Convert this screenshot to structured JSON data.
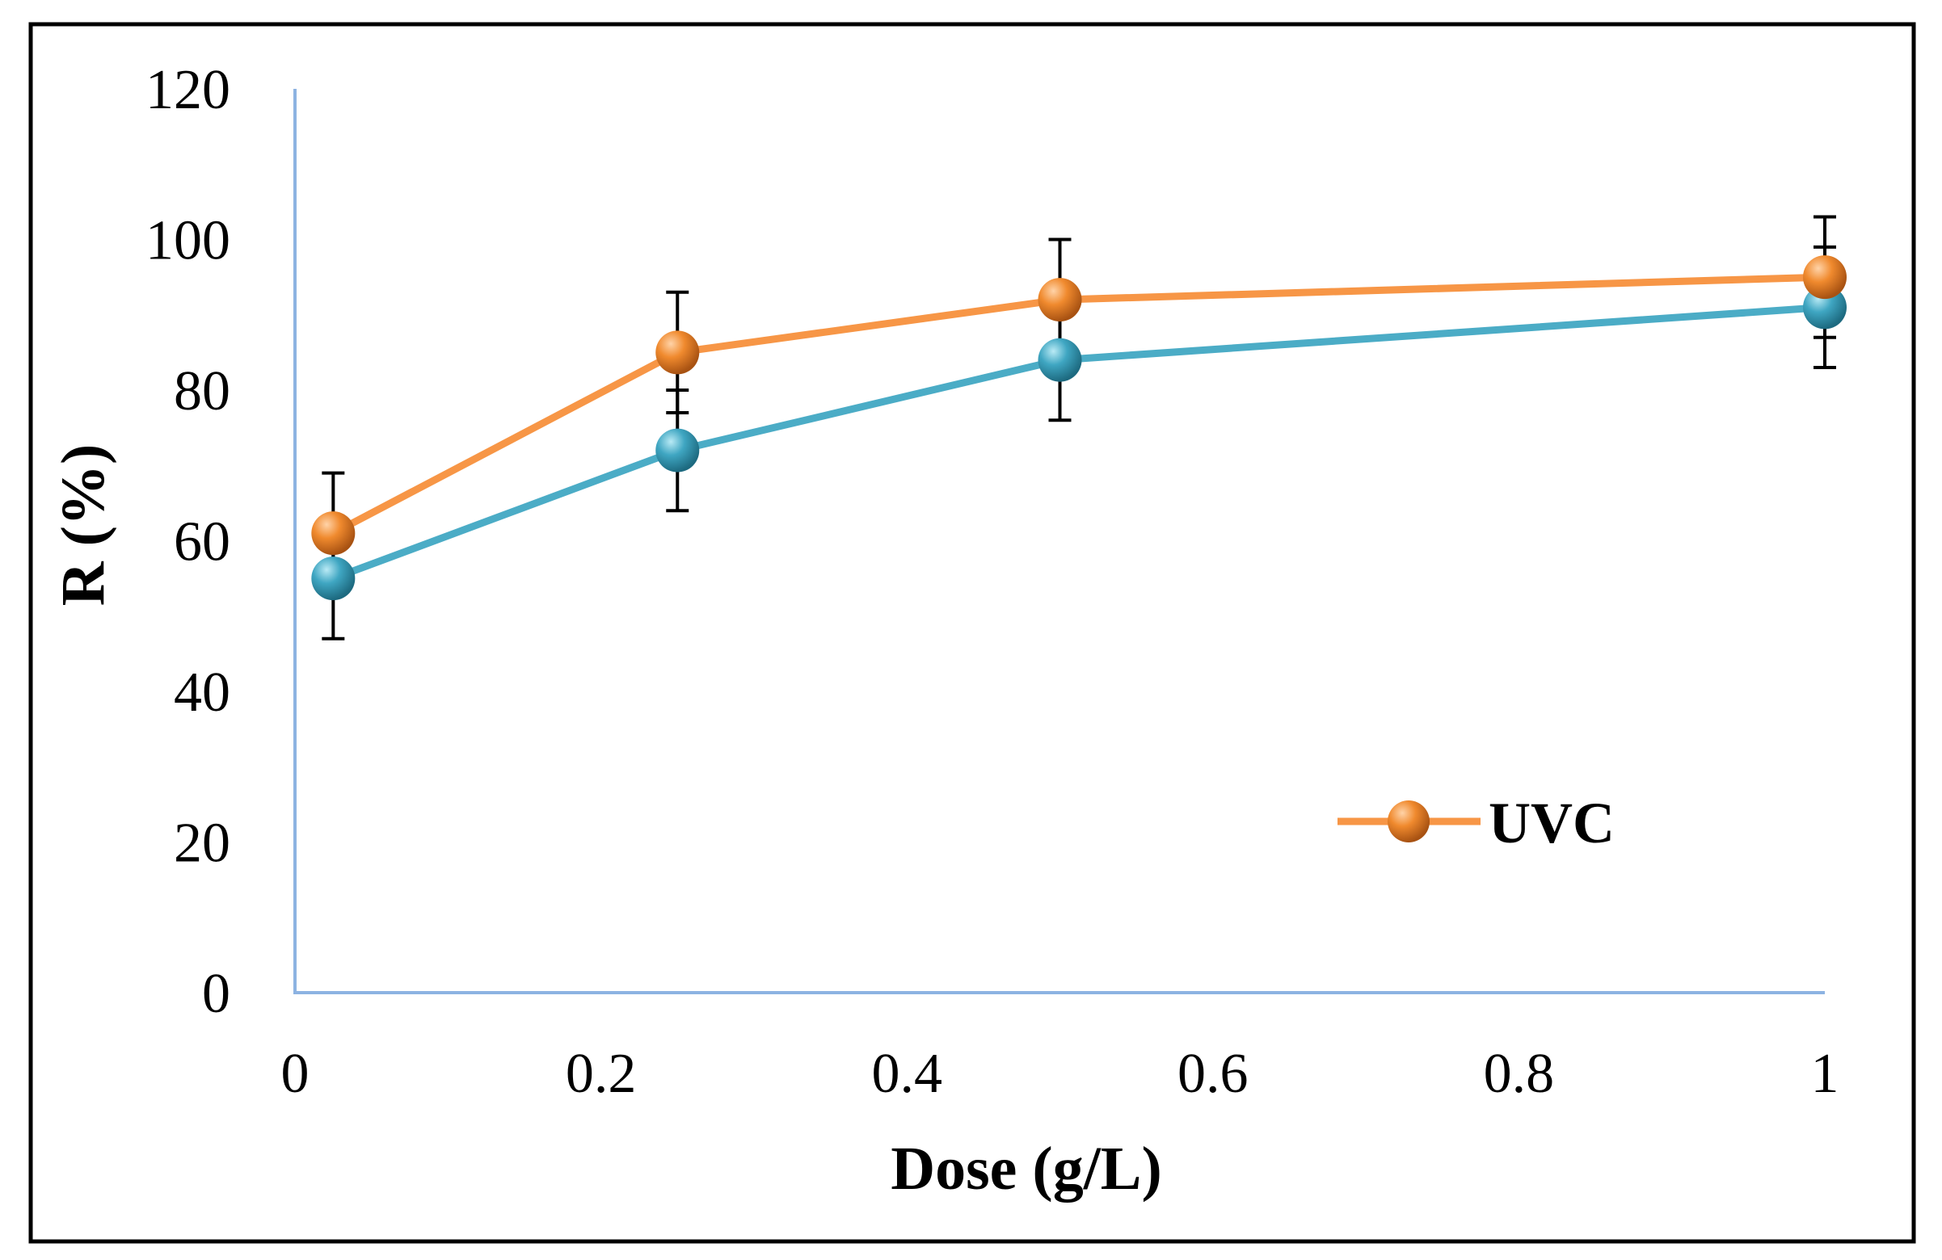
{
  "chart_data": {
    "type": "line",
    "title": "",
    "xlabel": "Dose (g/L)",
    "ylabel": "R (%)",
    "xlim": [
      0,
      1
    ],
    "ylim": [
      0,
      120
    ],
    "xticks": [
      "0",
      "0.2",
      "0.4",
      "0.6",
      "0.8",
      "1"
    ],
    "xtick_values": [
      0,
      0.2,
      0.4,
      0.6,
      0.8,
      1
    ],
    "yticks": [
      "0",
      "20",
      "40",
      "60",
      "80",
      "100",
      "120"
    ],
    "ytick_values": [
      0,
      20,
      40,
      60,
      80,
      100,
      120
    ],
    "grid": false,
    "legend_position": "bottom-right",
    "series": [
      {
        "name": "",
        "color": "#4BACC6",
        "x": [
          0.025,
          0.25,
          0.5,
          1
        ],
        "y": [
          55,
          72,
          84,
          91
        ],
        "error": [
          8,
          8,
          8,
          8
        ]
      },
      {
        "name": "UVC",
        "color": "#F79646",
        "x": [
          0.025,
          0.25,
          0.5,
          1
        ],
        "y": [
          61,
          85,
          92,
          95
        ],
        "error": [
          8,
          8,
          8,
          8
        ]
      }
    ]
  }
}
